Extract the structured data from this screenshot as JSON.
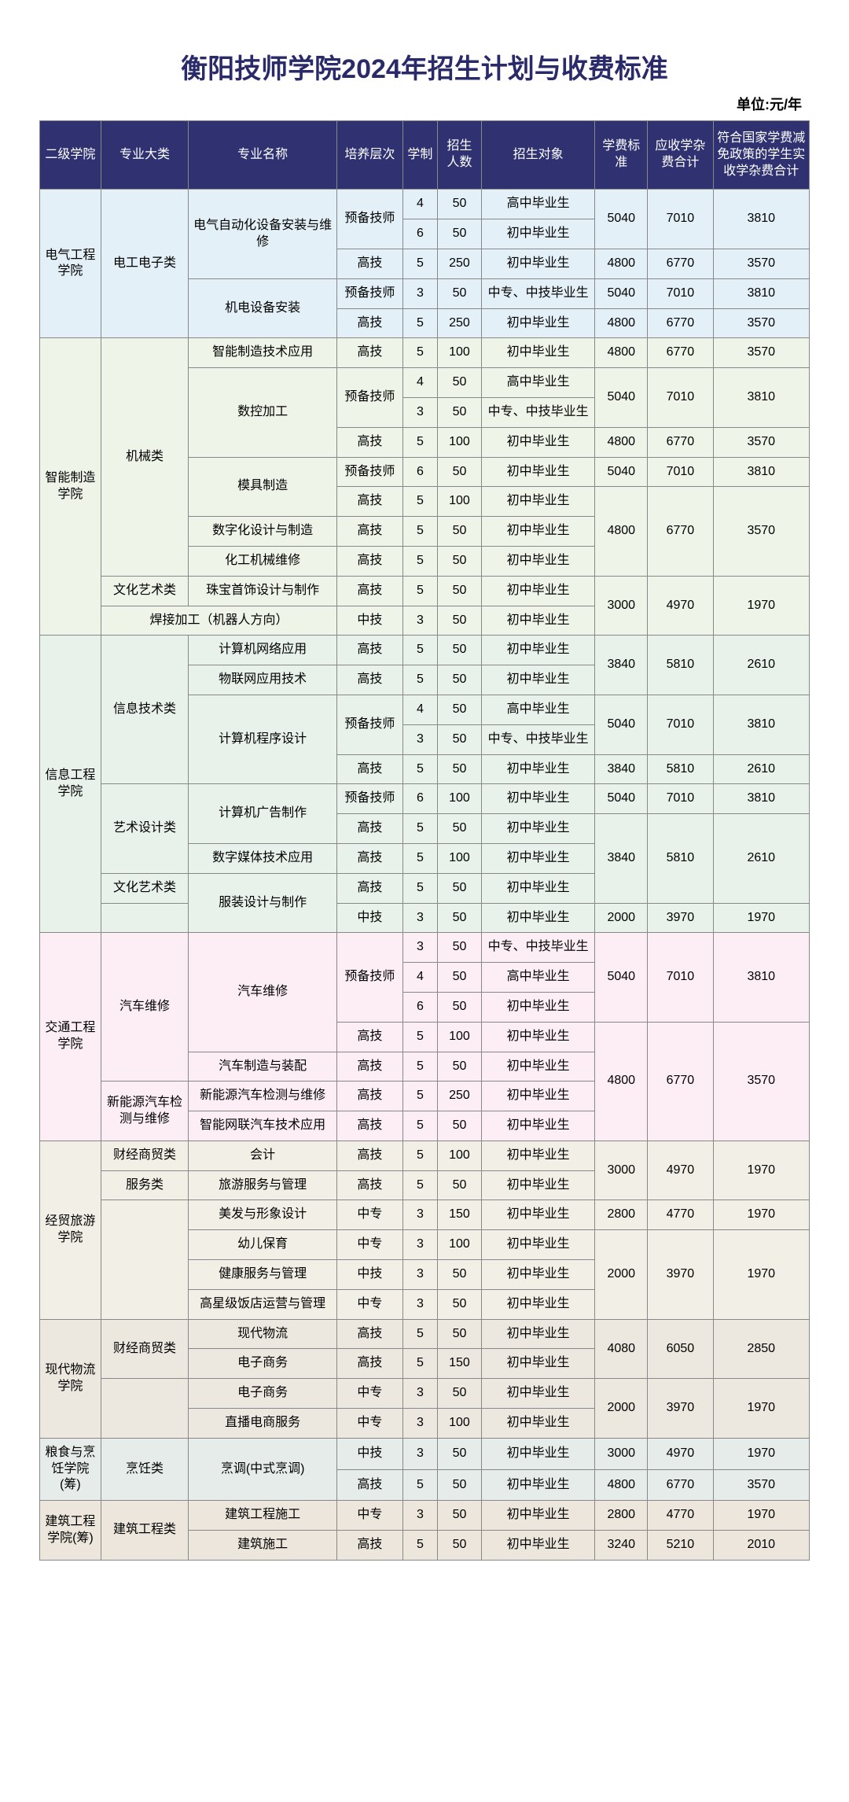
{
  "title": "衡阳技师学院2024年招生计划与收费标准",
  "unit": "单位:元/年",
  "headers": {
    "college": "二级学院",
    "category": "专业大类",
    "major": "专业名称",
    "level": "培养层次",
    "duration": "学制",
    "number": "招生人数",
    "target": "招生对象",
    "fee": "学费标准",
    "total": "应收学杂费合计",
    "reduced": "符合国家学费减免政策的学生实收学杂费合计"
  },
  "colleges": {
    "c1": "电气工程学院",
    "c2": "智能制造学院",
    "c3": "信息工程学院",
    "c4": "交通工程学院",
    "c5": "经贸旅游学院",
    "c6": "现代物流学院",
    "c7": "粮食与烹饪学院(筹)",
    "c8": "建筑工程学院(筹)"
  },
  "categories": {
    "g1": "电工电子类",
    "g2a": "机械类",
    "g2b": "文化艺术类",
    "g3a": "信息技术类",
    "g3b": "艺术设计类",
    "g3c": "文化艺术类",
    "g4a": "汽车维修",
    "g4b": "新能源汽车检测与维修",
    "g5a": "财经商贸类",
    "g5b": "服务类",
    "g6a": "财经商贸类",
    "g7": "烹饪类",
    "g8": "建筑工程类"
  },
  "majors": {
    "m1": "电气自动化设备安装与维修",
    "m2": "机电设备安装",
    "m3": "智能制造技术应用",
    "m4": "数控加工",
    "m5": "模具制造",
    "m6": "数字化设计与制造",
    "m7": "化工机械维修",
    "m8": "珠宝首饰设计与制作",
    "m9": "焊接加工（机器人方向）",
    "m10": "计算机网络应用",
    "m11": "物联网应用技术",
    "m12": "计算机程序设计",
    "m13": "计算机广告制作",
    "m14": "数字媒体技术应用",
    "m15": "服装设计与制作",
    "m16": "汽车维修",
    "m17": "汽车制造与装配",
    "m18": "新能源汽车检测与维修",
    "m19": "智能网联汽车技术应用",
    "m20": "会计",
    "m21": "旅游服务与管理",
    "m22": "美发与形象设计",
    "m23": "幼儿保育",
    "m24": "健康服务与管理",
    "m25": "高星级饭店运营与管理",
    "m26": "现代物流",
    "m27": "电子商务",
    "m28": "电子商务",
    "m29": "直播电商服务",
    "m30": "烹调(中式烹调)",
    "m31": "建筑工程施工",
    "m32": "建筑施工"
  },
  "levels": {
    "prep": "预备技师",
    "gaoji": "高技",
    "zhongji": "中技",
    "zhongzhuan": "中专"
  },
  "targets": {
    "gaozhong": "高中毕业生",
    "chuzhong": "初中毕业生",
    "zz_zj": "中专、中技毕业生"
  },
  "rows": {
    "r1": {
      "dur": "4",
      "num": "50",
      "fee": "5040",
      "tot": "7010",
      "red": "3810"
    },
    "r2": {
      "dur": "6",
      "num": "50"
    },
    "r3": {
      "dur": "5",
      "num": "250",
      "fee": "4800",
      "tot": "6770",
      "red": "3570"
    },
    "r4": {
      "dur": "3",
      "num": "50",
      "fee": "5040",
      "tot": "7010",
      "red": "3810"
    },
    "r5": {
      "dur": "5",
      "num": "250",
      "fee": "4800",
      "tot": "6770",
      "red": "3570"
    },
    "r6": {
      "dur": "5",
      "num": "100",
      "fee": "4800",
      "tot": "6770",
      "red": "3570"
    },
    "r7": {
      "dur": "4",
      "num": "50",
      "fee": "5040",
      "tot": "7010",
      "red": "3810"
    },
    "r8": {
      "dur": "3",
      "num": "50"
    },
    "r9": {
      "dur": "5",
      "num": "100",
      "fee": "4800",
      "tot": "6770",
      "red": "3570"
    },
    "r10": {
      "dur": "6",
      "num": "50",
      "fee": "5040",
      "tot": "7010",
      "red": "3810"
    },
    "r11": {
      "dur": "5",
      "num": "100",
      "fee": "4800",
      "tot": "6770",
      "red": "3570"
    },
    "r12": {
      "dur": "5",
      "num": "50"
    },
    "r13": {
      "dur": "5",
      "num": "50"
    },
    "r14": {
      "dur": "5",
      "num": "50",
      "fee": "3000",
      "tot": "4970",
      "red": "1970"
    },
    "r15": {
      "dur": "3",
      "num": "50"
    },
    "r16": {
      "dur": "5",
      "num": "50",
      "fee": "3840",
      "tot": "5810",
      "red": "2610"
    },
    "r17": {
      "dur": "5",
      "num": "50"
    },
    "r18": {
      "dur": "4",
      "num": "50",
      "fee": "5040",
      "tot": "7010",
      "red": "3810"
    },
    "r19": {
      "dur": "3",
      "num": "50"
    },
    "r20": {
      "dur": "5",
      "num": "50",
      "fee": "3840",
      "tot": "5810",
      "red": "2610"
    },
    "r21": {
      "dur": "6",
      "num": "100",
      "fee": "5040",
      "tot": "7010",
      "red": "3810"
    },
    "r22": {
      "dur": "5",
      "num": "50",
      "fee": "3840",
      "tot": "5810",
      "red": "2610"
    },
    "r23": {
      "dur": "5",
      "num": "100"
    },
    "r24": {
      "dur": "5",
      "num": "50"
    },
    "r25": {
      "dur": "3",
      "num": "50",
      "fee": "2000",
      "tot": "3970",
      "red": "1970"
    },
    "r26": {
      "dur": "3",
      "num": "50",
      "fee": "5040",
      "tot": "7010",
      "red": "3810"
    },
    "r27": {
      "dur": "4",
      "num": "50"
    },
    "r28": {
      "dur": "6",
      "num": "50"
    },
    "r29": {
      "dur": "5",
      "num": "100",
      "fee": "4800",
      "tot": "6770",
      "red": "3570"
    },
    "r30": {
      "dur": "5",
      "num": "50"
    },
    "r31": {
      "dur": "5",
      "num": "250"
    },
    "r32": {
      "dur": "5",
      "num": "50"
    },
    "r33": {
      "dur": "5",
      "num": "100",
      "fee": "3000",
      "tot": "4970",
      "red": "1970"
    },
    "r34": {
      "dur": "5",
      "num": "50"
    },
    "r35": {
      "dur": "3",
      "num": "150",
      "fee": "2800",
      "tot": "4770",
      "red": "1970"
    },
    "r36": {
      "dur": "3",
      "num": "100",
      "fee": "2000",
      "tot": "3970",
      "red": "1970"
    },
    "r37": {
      "dur": "3",
      "num": "50"
    },
    "r38": {
      "dur": "3",
      "num": "50"
    },
    "r39": {
      "dur": "5",
      "num": "50",
      "fee": "4080",
      "tot": "6050",
      "red": "2850"
    },
    "r40": {
      "dur": "5",
      "num": "150"
    },
    "r41": {
      "dur": "3",
      "num": "50",
      "fee": "2000",
      "tot": "3970",
      "red": "1970"
    },
    "r42": {
      "dur": "3",
      "num": "100"
    },
    "r43": {
      "dur": "3",
      "num": "50",
      "fee": "3000",
      "tot": "4970",
      "red": "1970"
    },
    "r44": {
      "dur": "5",
      "num": "50",
      "fee": "4800",
      "tot": "6770",
      "red": "3570"
    },
    "r45": {
      "dur": "3",
      "num": "50",
      "fee": "2800",
      "tot": "4770",
      "red": "1970"
    },
    "r46": {
      "dur": "5",
      "num": "50",
      "fee": "3240",
      "tot": "5210",
      "red": "2010"
    }
  }
}
